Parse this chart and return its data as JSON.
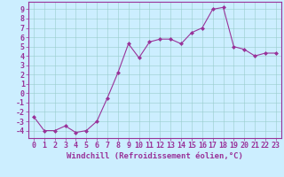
{
  "x": [
    0,
    1,
    2,
    3,
    4,
    5,
    6,
    7,
    8,
    9,
    10,
    11,
    12,
    13,
    14,
    15,
    16,
    17,
    18,
    19,
    20,
    21,
    22,
    23
  ],
  "y": [
    -2.5,
    -4.0,
    -4.0,
    -3.5,
    -4.2,
    -4.0,
    -3.0,
    -0.5,
    2.2,
    5.3,
    3.8,
    5.5,
    5.8,
    5.8,
    5.3,
    6.5,
    7.0,
    9.0,
    9.2,
    5.0,
    4.7,
    4.0,
    4.3,
    4.3
  ],
  "line_color": "#993399",
  "marker": "D",
  "marker_size": 2,
  "bg_color": "#cceeff",
  "grid_color": "#99cccc",
  "xlabel": "Windchill (Refroidissement éolien,°C)",
  "xlabel_fontsize": 6.5,
  "ylabel_ticks": [
    -4,
    -3,
    -2,
    -1,
    0,
    1,
    2,
    3,
    4,
    5,
    6,
    7,
    8,
    9
  ],
  "ylim": [
    -4.8,
    9.8
  ],
  "xlim": [
    -0.5,
    23.5
  ],
  "tick_fontsize": 6.0,
  "axis_color": "#993399",
  "spine_color": "#993399"
}
